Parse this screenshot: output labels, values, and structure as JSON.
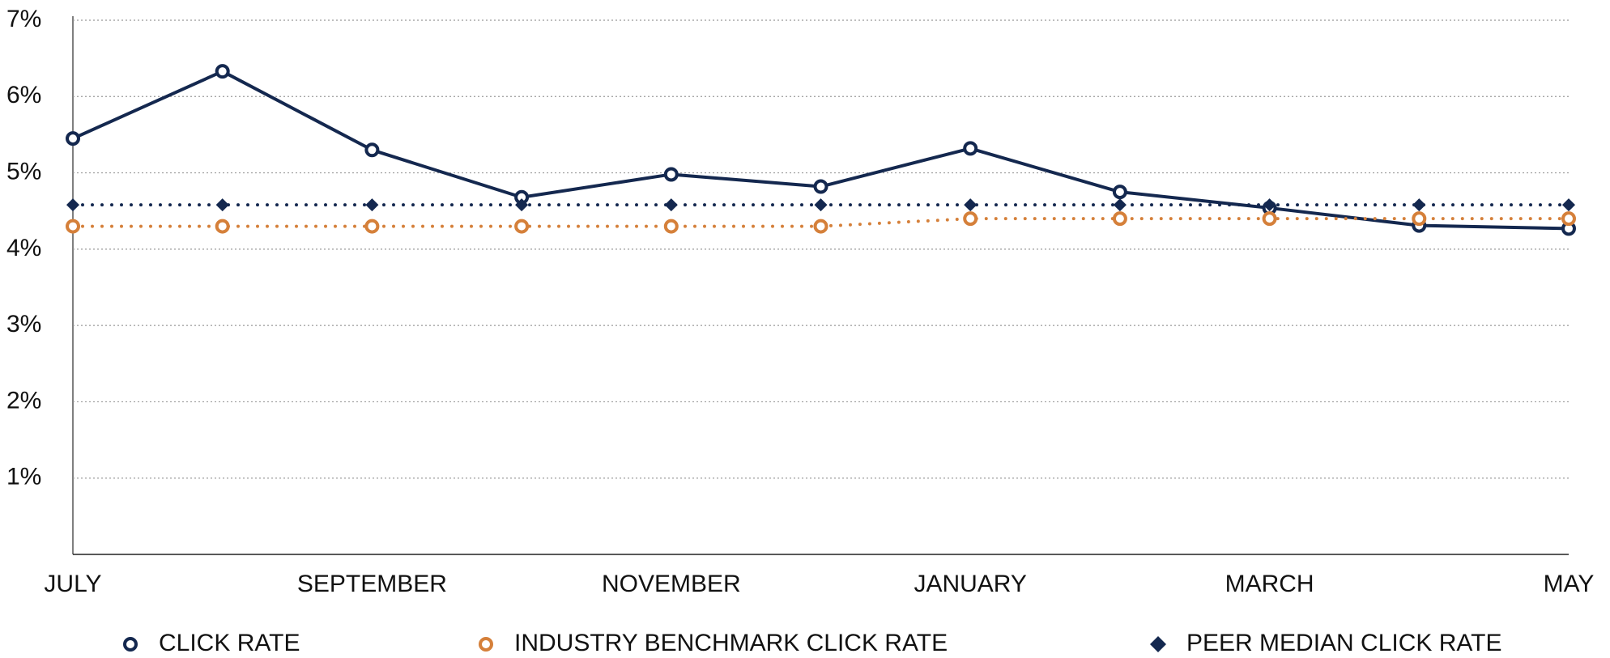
{
  "chart_data": {
    "type": "line",
    "categories": [
      "JULY",
      null,
      "SEPTEMBER",
      null,
      "NOVEMBER",
      null,
      "JANUARY",
      null,
      "MARCH",
      null,
      "MAY"
    ],
    "series": [
      {
        "name": "CLICK RATE",
        "color": "#14284f",
        "line_style": "solid",
        "marker": "open-circle",
        "values": [
          5.45,
          6.33,
          5.3,
          4.68,
          4.98,
          4.82,
          5.32,
          4.75,
          4.54,
          4.31,
          4.27
        ]
      },
      {
        "name": "INDUSTRY BENCHMARK CLICK RATE",
        "color": "#d5803a",
        "line_style": "dotted",
        "marker": "open-circle",
        "values": [
          4.3,
          4.3,
          4.3,
          4.3,
          4.3,
          4.3,
          4.4,
          4.4,
          4.4,
          4.4,
          4.4
        ]
      },
      {
        "name": "PEER MEDIAN CLICK RATE",
        "color": "#14284f",
        "line_style": "dotted",
        "marker": "diamond",
        "values": [
          4.58,
          4.58,
          4.58,
          4.58,
          4.58,
          4.58,
          4.58,
          4.58,
          4.58,
          4.58,
          4.58
        ]
      }
    ],
    "ylim": [
      0,
      7
    ],
    "yticks": [
      {
        "value": 1,
        "label": "1%"
      },
      {
        "value": 2,
        "label": "2%"
      },
      {
        "value": 3,
        "label": "3%"
      },
      {
        "value": 4,
        "label": "4%"
      },
      {
        "value": 5,
        "label": "5%"
      },
      {
        "value": 6,
        "label": "6%"
      },
      {
        "value": 7,
        "label": "7%"
      }
    ],
    "grid": true,
    "legend": "bottom"
  }
}
